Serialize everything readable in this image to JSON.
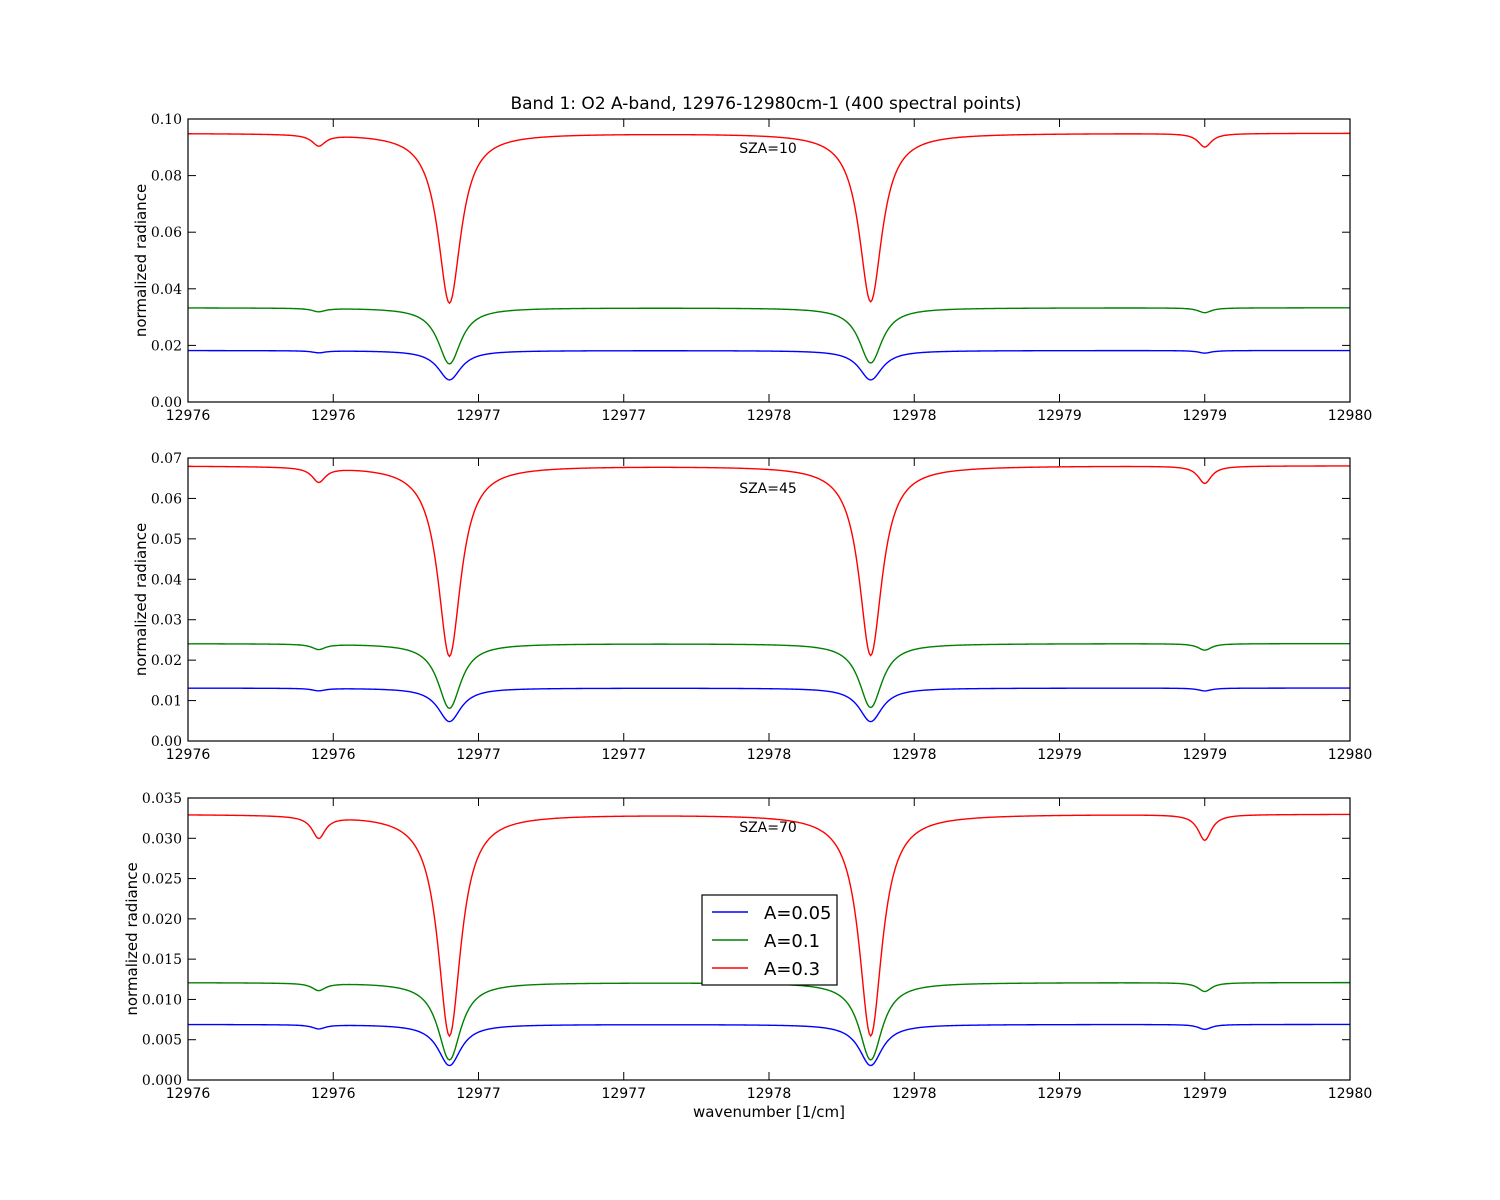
{
  "title": "Band 1: O2 A-band, 12976-12980cm-1 (400 spectral points)",
  "colors": {
    "A005": "#0000ff",
    "A01": "#008000",
    "A03": "#ff0000",
    "axes": "#000000",
    "background": "#ffffff"
  },
  "chart_data": [
    {
      "type": "line",
      "annotation": "SZA=10",
      "ylabel": "normalized radiance",
      "xlabel": "",
      "xlim": [
        12976.0,
        12980.0
      ],
      "ylim": [
        0.0,
        0.1
      ],
      "x_ticks": [
        12976.0,
        12976.5,
        12977.0,
        12977.5,
        12978.0,
        12978.5,
        12979.0,
        12979.5,
        12980.0
      ],
      "x_tick_labels": [
        "12976",
        "12976",
        "12977",
        "12977",
        "12978",
        "12978",
        "12979",
        "12979",
        "12980"
      ],
      "y_ticks": [
        0.0,
        0.02,
        0.04,
        0.06,
        0.08,
        0.1
      ],
      "y_tick_labels": [
        "0.00",
        "0.02",
        "0.04",
        "0.06",
        "0.08",
        "0.10"
      ],
      "line_centers": [
        12976.45,
        12976.9,
        12978.35,
        12979.5
      ],
      "series": [
        {
          "name": "A=0.05",
          "color": "#0000ff",
          "continuum": 0.0182,
          "line_minima": [
            0.0175,
            0.0078,
            0.0078,
            0.0173
          ]
        },
        {
          "name": "A=0.1",
          "color": "#008000",
          "continuum": 0.0333,
          "line_minima": [
            0.0321,
            0.0135,
            0.0138,
            0.0316
          ]
        },
        {
          "name": "A=0.3",
          "color": "#ff0000",
          "continuum": 0.095,
          "line_minima": [
            0.0911,
            0.035,
            0.0355,
            0.0902
          ]
        }
      ]
    },
    {
      "type": "line",
      "annotation": "SZA=45",
      "ylabel": "normalized radiance",
      "xlabel": "",
      "xlim": [
        12976.0,
        12980.0
      ],
      "ylim": [
        0.0,
        0.07
      ],
      "x_ticks": [
        12976.0,
        12976.5,
        12977.0,
        12977.5,
        12978.0,
        12978.5,
        12979.0,
        12979.5,
        12980.0
      ],
      "x_tick_labels": [
        "12976",
        "12976",
        "12977",
        "12977",
        "12978",
        "12978",
        "12979",
        "12979",
        "12980"
      ],
      "y_ticks": [
        0.0,
        0.01,
        0.02,
        0.03,
        0.04,
        0.05,
        0.06,
        0.07
      ],
      "y_tick_labels": [
        "0.00",
        "0.01",
        "0.02",
        "0.03",
        "0.04",
        "0.05",
        "0.06",
        "0.07"
      ],
      "line_centers": [
        12976.45,
        12976.9,
        12978.35,
        12979.5
      ],
      "series": [
        {
          "name": "A=0.05",
          "color": "#0000ff",
          "continuum": 0.0131,
          "line_minima": [
            0.0125,
            0.0048,
            0.0048,
            0.0124
          ]
        },
        {
          "name": "A=0.1",
          "color": "#008000",
          "continuum": 0.0241,
          "line_minima": [
            0.0228,
            0.0081,
            0.0083,
            0.0225
          ]
        },
        {
          "name": "A=0.3",
          "color": "#ff0000",
          "continuum": 0.0681,
          "line_minima": [
            0.0645,
            0.021,
            0.0212,
            0.0638
          ]
        }
      ]
    },
    {
      "type": "line",
      "annotation": "SZA=70",
      "ylabel": "normalized radiance",
      "xlabel": "wavenumber [1/cm]",
      "xlim": [
        12976.0,
        12980.0
      ],
      "ylim": [
        0.0,
        0.035
      ],
      "x_ticks": [
        12976.0,
        12976.5,
        12977.0,
        12977.5,
        12978.0,
        12978.5,
        12979.0,
        12979.5,
        12980.0
      ],
      "x_tick_labels": [
        "12976",
        "12976",
        "12977",
        "12977",
        "12978",
        "12978",
        "12979",
        "12979",
        "12980"
      ],
      "y_ticks": [
        0.0,
        0.005,
        0.01,
        0.015,
        0.02,
        0.025,
        0.03,
        0.035
      ],
      "y_tick_labels": [
        "0.000",
        "0.005",
        "0.010",
        "0.015",
        "0.020",
        "0.025",
        "0.030",
        "0.035"
      ],
      "line_centers": [
        12976.45,
        12976.9,
        12978.35,
        12979.5
      ],
      "legend": {
        "placement": "center",
        "entries": [
          "A=0.05",
          "A=0.1",
          "A=0.3"
        ]
      },
      "series": [
        {
          "name": "A=0.05",
          "color": "#0000ff",
          "continuum": 0.0069,
          "line_minima": [
            0.0064,
            0.0018,
            0.0018,
            0.0063
          ]
        },
        {
          "name": "A=0.1",
          "color": "#008000",
          "continuum": 0.0121,
          "line_minima": [
            0.0112,
            0.0025,
            0.0025,
            0.011
          ]
        },
        {
          "name": "A=0.3",
          "color": "#ff0000",
          "continuum": 0.033,
          "line_minima": [
            0.0303,
            0.0055,
            0.0055,
            0.0298
          ]
        }
      ]
    }
  ]
}
